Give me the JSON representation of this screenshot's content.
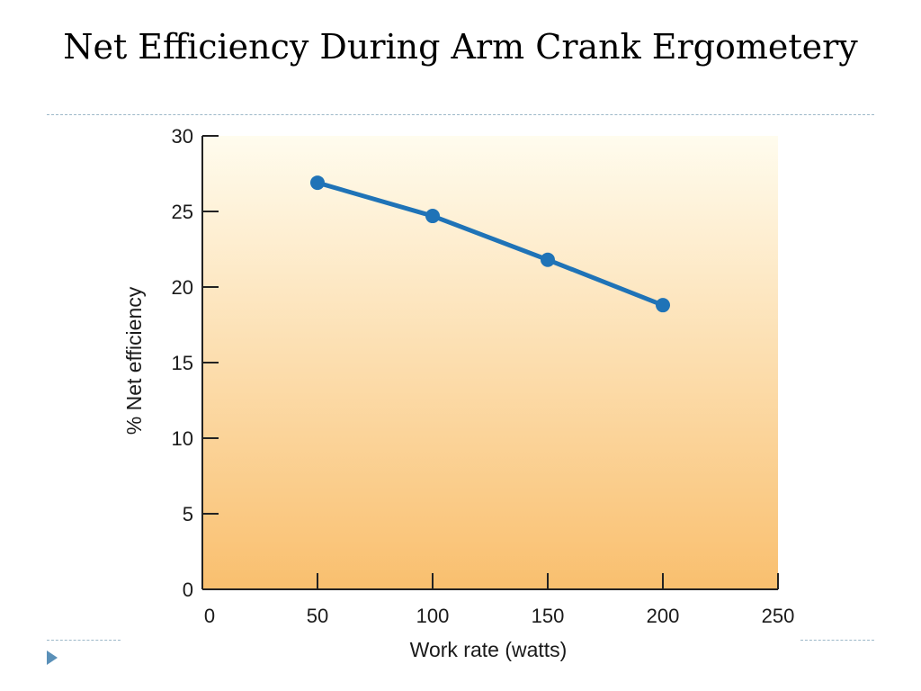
{
  "slide": {
    "title": "Net Efficiency During Arm Crank Ergometery"
  },
  "colors": {
    "line": "#1f73b7",
    "plot_bg_top": "#fffcee",
    "plot_bg_bottom": "#f9bf6e",
    "bullet": "#5a90b8"
  },
  "chart_data": {
    "type": "line",
    "title": "",
    "xlabel": "Work rate (watts)",
    "ylabel": "% Net efficiency",
    "x": [
      50,
      100,
      150,
      200
    ],
    "series": [
      {
        "values": [
          26.9,
          24.7,
          21.8,
          18.8
        ]
      }
    ],
    "xlim": [
      0,
      250
    ],
    "ylim": [
      0,
      30
    ],
    "xticks": [
      0,
      50,
      100,
      150,
      200,
      250
    ],
    "yticks": [
      0,
      5,
      10,
      15,
      20,
      25,
      30
    ],
    "grid": false,
    "legend": "none"
  }
}
